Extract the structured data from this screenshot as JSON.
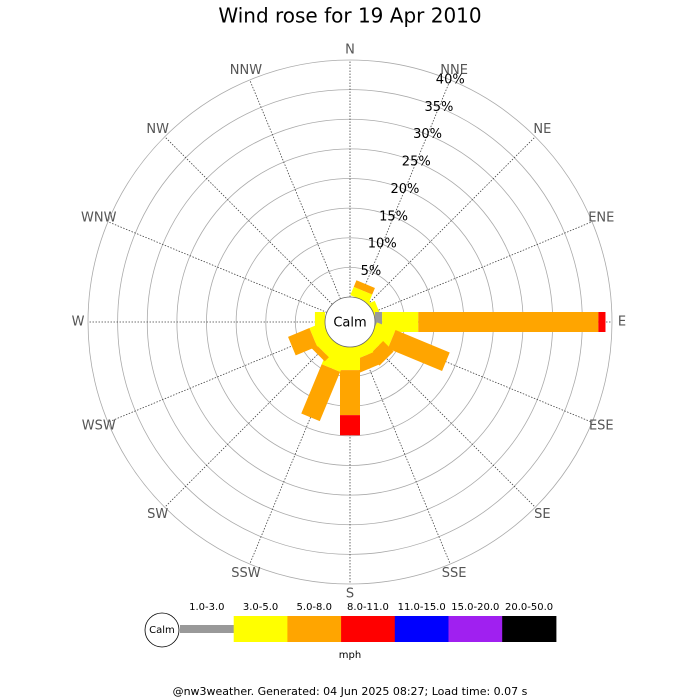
{
  "chart_data": {
    "type": "windrose",
    "title": "Wind rose for 19 Apr 2010",
    "directions": [
      "N",
      "NNE",
      "NE",
      "ENE",
      "E",
      "ESE",
      "SE",
      "SSE",
      "S",
      "SSW",
      "SW",
      "WSW",
      "W",
      "WNW",
      "NW",
      "NNW"
    ],
    "rlim": [
      0,
      40
    ],
    "rticks": [
      {
        "value": 5,
        "label": "5%"
      },
      {
        "value": 10,
        "label": "10%"
      },
      {
        "value": 15,
        "label": "15%"
      },
      {
        "value": 20,
        "label": "20%"
      },
      {
        "value": 25,
        "label": "25%"
      },
      {
        "value": 30,
        "label": "30%"
      },
      {
        "value": 35,
        "label": "35%"
      },
      {
        "value": 40,
        "label": "40%"
      }
    ],
    "calm_label": "Calm",
    "unit_label": "mph",
    "series": [
      {
        "name": "1.0-3.0",
        "color": "#999999",
        "values": [
          0,
          0,
          0,
          0,
          1.2,
          0,
          0,
          0,
          0,
          0,
          0,
          0,
          0,
          0,
          0,
          0
        ]
      },
      {
        "name": "3.0-5.0",
        "color": "#ffff00",
        "values": [
          0,
          1.5,
          0.5,
          1,
          6.1,
          3.4,
          2,
          2,
          3.9,
          4.2,
          2.5,
          2.5,
          1.7,
          0,
          0,
          0
        ]
      },
      {
        "name": "5.0-8.0",
        "color": "#ffa500",
        "values": [
          0,
          1.2,
          0,
          0,
          30.4,
          9.9,
          2.5,
          2.3,
          7.6,
          9,
          1,
          3.9,
          0,
          0,
          0,
          0
        ]
      },
      {
        "name": "8.0-11.0",
        "color": "#ff0000",
        "values": [
          0,
          0,
          0,
          0,
          1.2,
          0,
          0,
          0,
          3.4,
          0,
          0,
          0,
          0,
          0,
          0,
          0
        ]
      },
      {
        "name": "11.0-15.0",
        "color": "#0000ff",
        "values": [
          0,
          0,
          0,
          0,
          0,
          0,
          0,
          0,
          0,
          0,
          0,
          0,
          0,
          0,
          0,
          0
        ]
      },
      {
        "name": "15.0-20.0",
        "color": "#a020f0",
        "values": [
          0,
          0,
          0,
          0,
          0,
          0,
          0,
          0,
          0,
          0,
          0,
          0,
          0,
          0,
          0,
          0
        ]
      },
      {
        "name": "20.0-50.0",
        "color": "#000000",
        "values": [
          0,
          0,
          0,
          0,
          0,
          0,
          0,
          0,
          0,
          0,
          0,
          0,
          0,
          0,
          0,
          0
        ]
      }
    ],
    "footer": "@nw3weather. Generated: 04 Jun 2025 08:27; Load time: 0.07 s"
  }
}
